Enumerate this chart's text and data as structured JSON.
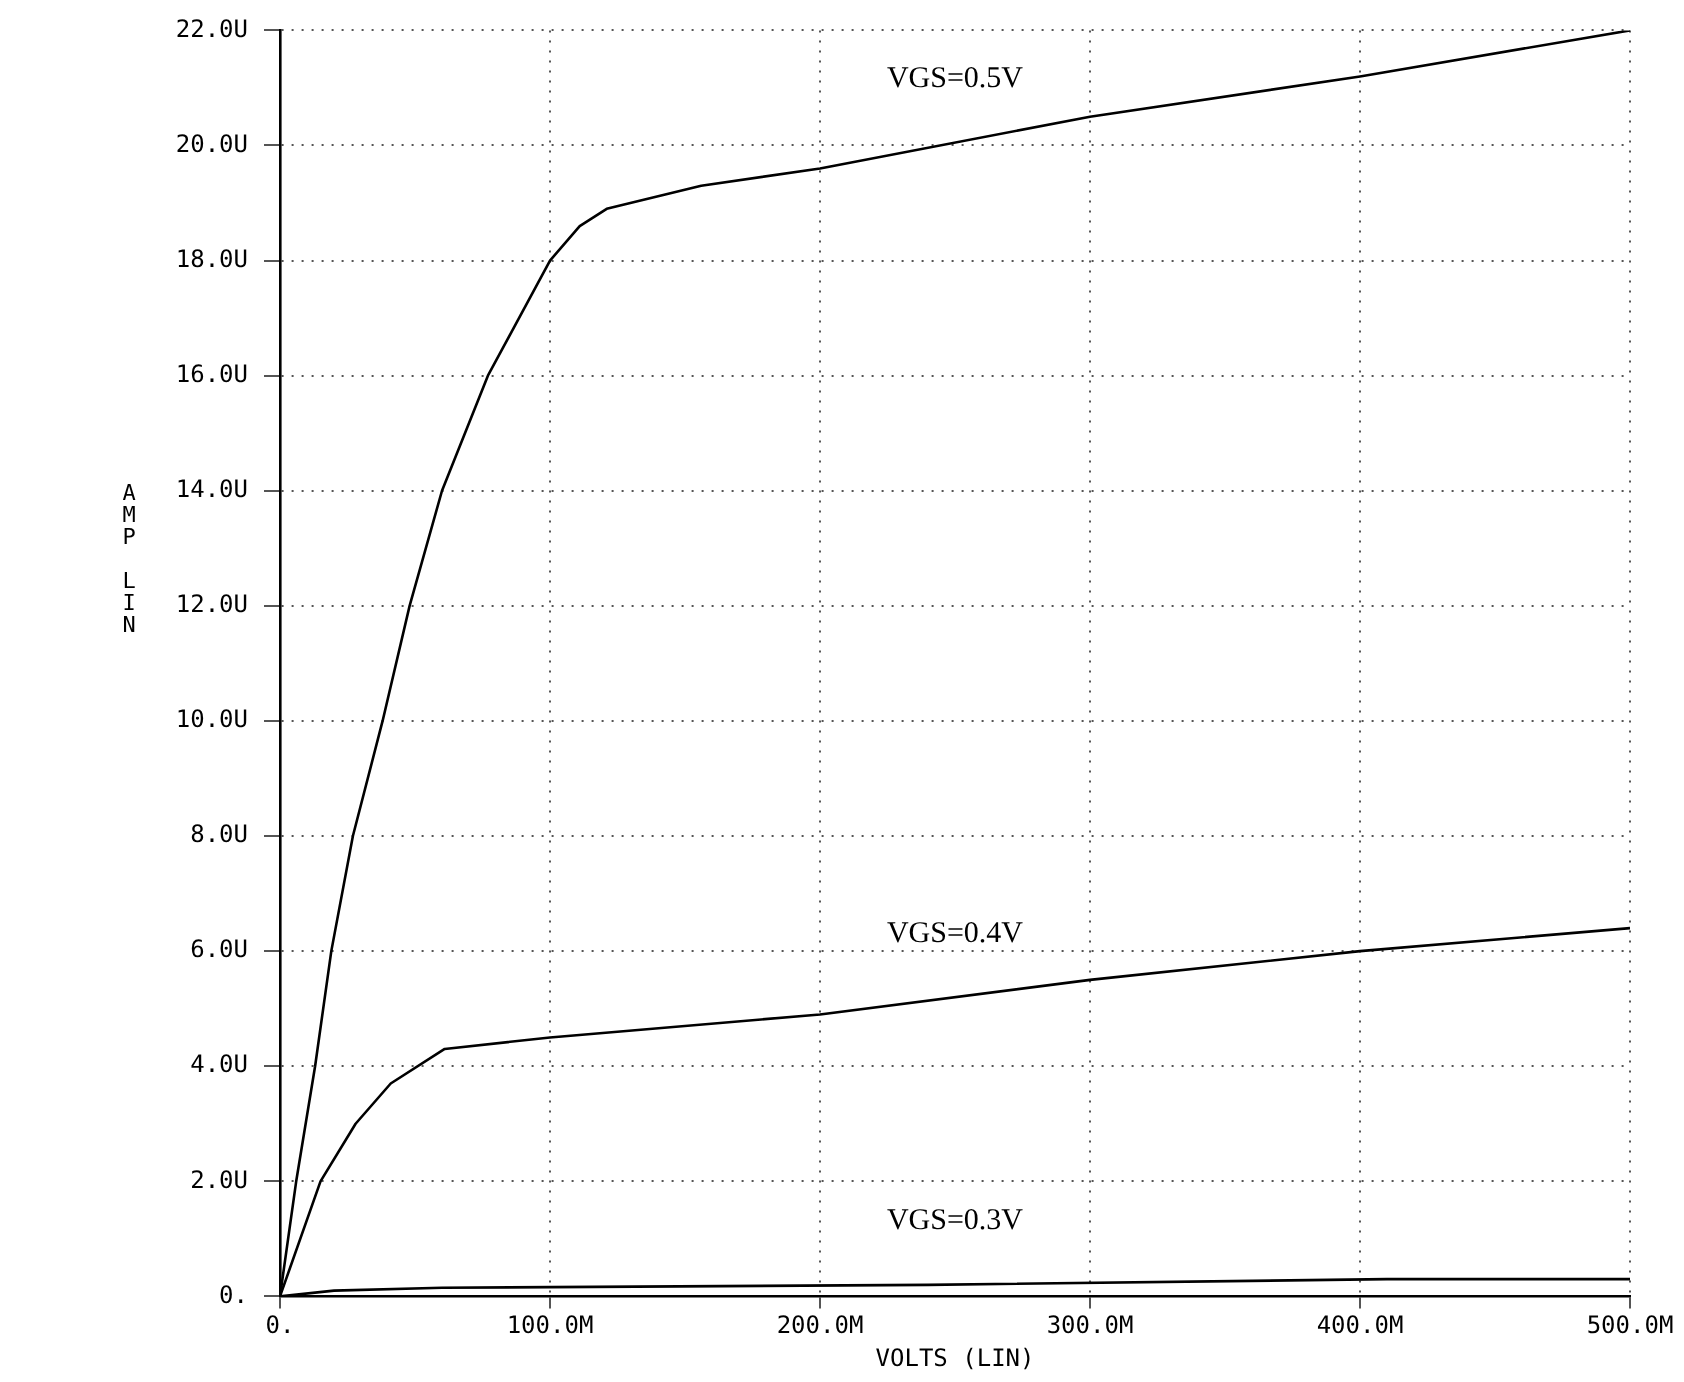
{
  "chart_data": {
    "type": "line",
    "xlabel": "VOLTS (LIN)",
    "ylabel": "AMP LIN",
    "xlim": [
      0,
      500
    ],
    "ylim": [
      0,
      22
    ],
    "xticks": [
      {
        "value": 0,
        "label": "0."
      },
      {
        "value": 100,
        "label": "100.0M"
      },
      {
        "value": 200,
        "label": "200.0M"
      },
      {
        "value": 300,
        "label": "300.0M"
      },
      {
        "value": 400,
        "label": "400.0M"
      },
      {
        "value": 500,
        "label": "500.0M"
      }
    ],
    "yticks": [
      {
        "value": 0,
        "label": "0."
      },
      {
        "value": 2,
        "label": "2.0U"
      },
      {
        "value": 4,
        "label": "4.0U"
      },
      {
        "value": 6,
        "label": "6.0U"
      },
      {
        "value": 8,
        "label": "8.0U"
      },
      {
        "value": 10,
        "label": "10.0U"
      },
      {
        "value": 12,
        "label": "12.0U"
      },
      {
        "value": 14,
        "label": "14.0U"
      },
      {
        "value": 16,
        "label": "16.0U"
      },
      {
        "value": 18,
        "label": "18.0U"
      },
      {
        "value": 20,
        "label": "20.0U"
      },
      {
        "value": 22,
        "label": "22.0U"
      }
    ],
    "grid": true,
    "legend": false,
    "line_style": "solid",
    "series": [
      {
        "name": "VGS=0.5V",
        "color": "#000000",
        "x": [
          0,
          6,
          13,
          19,
          27,
          38,
          48,
          60,
          77,
          100,
          111,
          121,
          156,
          200,
          300,
          400,
          500
        ],
        "values": [
          0,
          2,
          4,
          6,
          8,
          10,
          12,
          14,
          16,
          18,
          18.6,
          18.9,
          19.3,
          19.6,
          20.5,
          21.2,
          22
        ]
      },
      {
        "name": "VGS=0.4V",
        "color": "#000000",
        "x": [
          0,
          15,
          28,
          41,
          61,
          100,
          200,
          300,
          400,
          500
        ],
        "values": [
          0,
          2,
          3,
          3.7,
          4.3,
          4.5,
          4.9,
          5.5,
          6,
          6.4
        ]
      },
      {
        "name": "VGS=0.3V",
        "color": "#000000",
        "x": [
          0,
          20,
          60,
          240,
          410,
          500
        ],
        "values": [
          0,
          0.1,
          0.15,
          0.2,
          0.3,
          0.3
        ]
      }
    ]
  }
}
